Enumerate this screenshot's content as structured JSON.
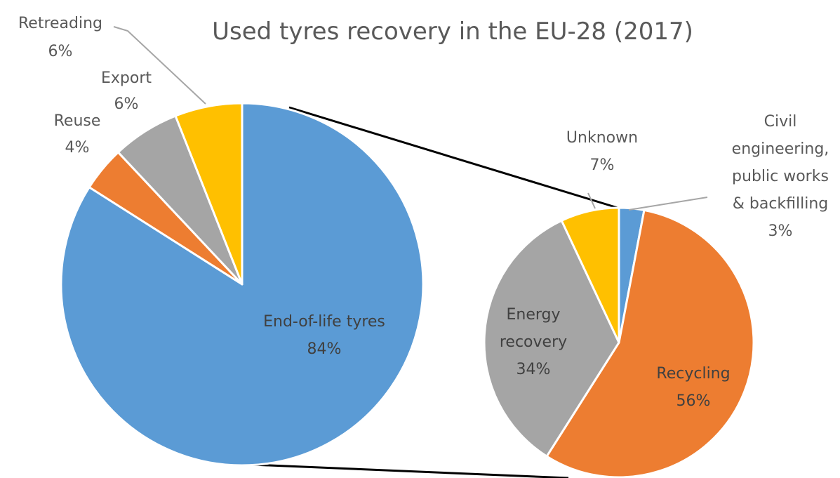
{
  "chart_data": {
    "type": "pie",
    "title": "Used tyres recovery in the EU-28 (2017)",
    "main_pie": {
      "slices": [
        {
          "label": "End-of-life tyres",
          "value": 84,
          "value_label": "84%",
          "color": "#5b9bd5"
        },
        {
          "label": "Reuse",
          "value": 4,
          "value_label": "4%",
          "color": "#ed7d31"
        },
        {
          "label": "Export",
          "value": 6,
          "value_label": "6%",
          "color": "#a5a5a5"
        },
        {
          "label": "Retreading",
          "value": 6,
          "value_label": "6%",
          "color": "#ffc000"
        }
      ]
    },
    "breakdown_pie": {
      "of": "End-of-life tyres",
      "slices": [
        {
          "label": "Civil engineering, public works & backfilling",
          "label_lines": [
            "Civil",
            "engineering,",
            "public works",
            "& backfilling"
          ],
          "value": 3,
          "value_label": "3%",
          "color": "#5b9bd5"
        },
        {
          "label": "Recycling",
          "value": 56,
          "value_label": "56%",
          "color": "#ed7d31"
        },
        {
          "label": "Energy recovery",
          "label_lines": [
            "Energy",
            "recovery"
          ],
          "value": 34,
          "value_label": "34%",
          "color": "#a5a5a5"
        },
        {
          "label": "Unknown",
          "value": 7,
          "value_label": "7%",
          "color": "#ffc000"
        }
      ]
    }
  }
}
